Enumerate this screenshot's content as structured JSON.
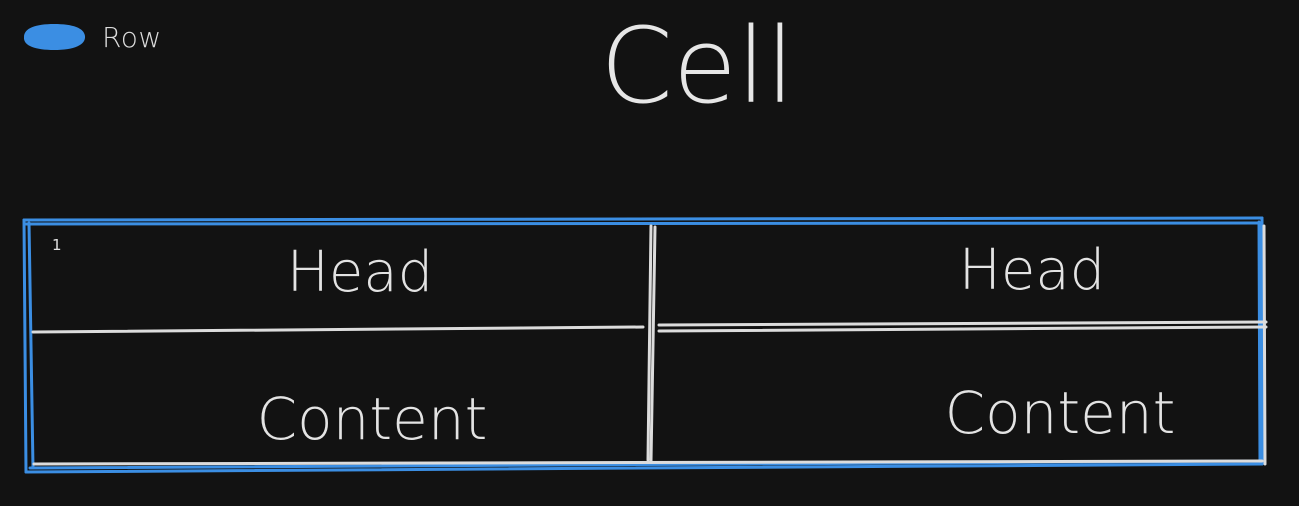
{
  "legend": {
    "label": "Row",
    "color": "#3b8ee3"
  },
  "title": "Cell",
  "table": {
    "row_index": "1",
    "headers": [
      "Head",
      "Head"
    ],
    "rows": [
      [
        "Content",
        "Content"
      ]
    ],
    "selection_color": "#3b8ee3",
    "line_color": "#dcdcdc"
  }
}
